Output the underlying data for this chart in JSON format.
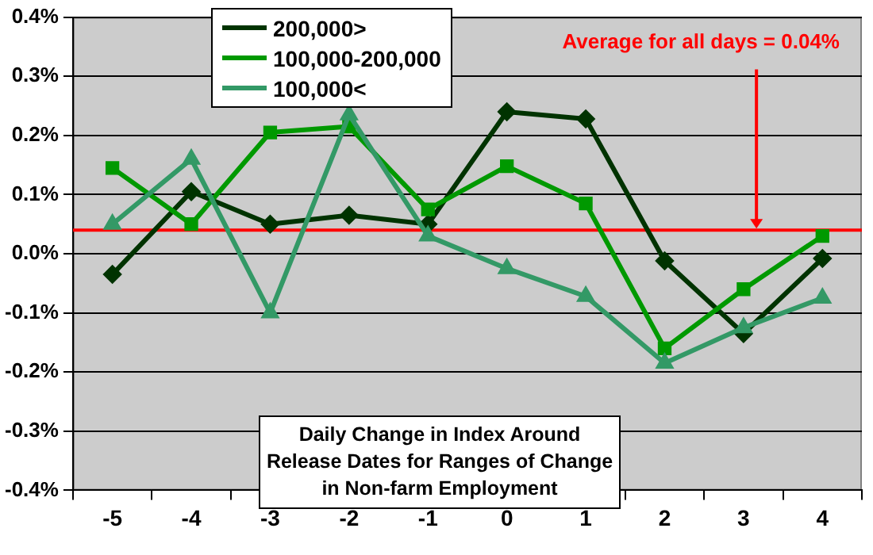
{
  "chart_data": {
    "type": "line",
    "title": "Daily Change in Index Around Release Dates for Ranges of Change in Non-farm Employment",
    "categories": [
      "-5",
      "-4",
      "-3",
      "-2",
      "-1",
      "0",
      "1",
      "2",
      "3",
      "4"
    ],
    "series": [
      {
        "name": "200,000>",
        "color": "#003300",
        "marker": "diamond",
        "values": [
          -0.035,
          0.105,
          0.05,
          0.065,
          0.05,
          0.24,
          0.228,
          -0.012,
          -0.135,
          -0.008
        ]
      },
      {
        "name": "100,000-200,000",
        "color": "#009900",
        "marker": "square",
        "values": [
          0.145,
          0.05,
          0.205,
          0.215,
          0.075,
          0.148,
          0.085,
          -0.16,
          -0.06,
          0.03
        ]
      },
      {
        "name": "100,000<",
        "color": "#339966",
        "marker": "triangle",
        "values": [
          0.05,
          0.16,
          -0.1,
          0.235,
          0.03,
          -0.025,
          -0.072,
          -0.185,
          -0.125,
          -0.075
        ]
      }
    ],
    "ylim": [
      -0.4,
      0.4
    ],
    "yticks": [
      {
        "value": -0.4,
        "label": "-0.4%"
      },
      {
        "value": -0.3,
        "label": "-0.3%"
      },
      {
        "value": -0.2,
        "label": "-0.2%"
      },
      {
        "value": -0.1,
        "label": "-0.1%"
      },
      {
        "value": 0,
        "label": "0.0%"
      },
      {
        "value": 0.1,
        "label": "0.1%"
      },
      {
        "value": 0.2,
        "label": "0.2%"
      },
      {
        "value": 0.3,
        "label": "0.3%"
      },
      {
        "value": 0.4,
        "label": "0.4%"
      }
    ],
    "ref_lines": [
      {
        "axis": "y",
        "value": 0.04,
        "label": "Average for all days = 0.04%",
        "color": "#ff0000"
      }
    ],
    "grid": "y",
    "legend": "top left",
    "line_style": "solid"
  }
}
